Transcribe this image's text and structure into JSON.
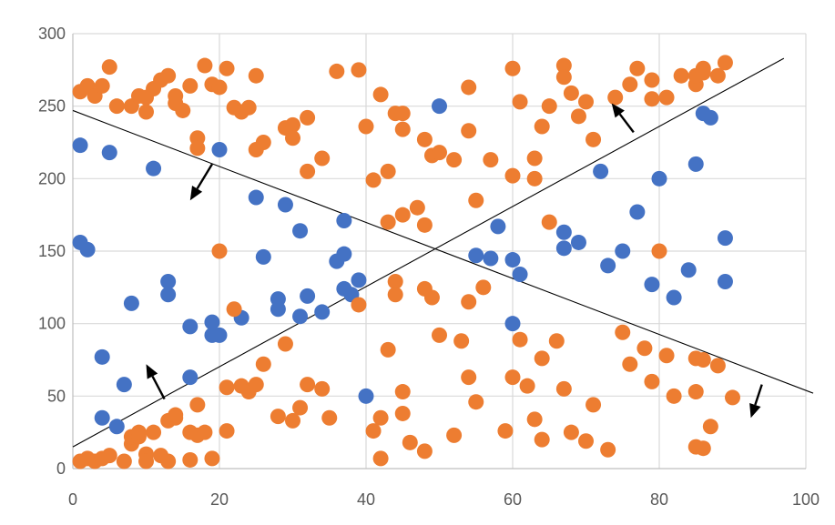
{
  "chart_data": {
    "type": "scatter",
    "title": "",
    "xlabel": "",
    "ylabel": "",
    "xlim": [
      0,
      100
    ],
    "ylim": [
      0,
      300
    ],
    "x_ticks": [
      0,
      20,
      40,
      60,
      80,
      100
    ],
    "y_ticks": [
      0,
      50,
      100,
      150,
      200,
      250,
      300
    ],
    "grid": true,
    "legend": "none",
    "series": [
      {
        "name": "blue",
        "color": "#4472c4",
        "points": [
          [
            1,
            223
          ],
          [
            5,
            218
          ],
          [
            1,
            156
          ],
          [
            2,
            151
          ],
          [
            11,
            207
          ],
          [
            20,
            220
          ],
          [
            4,
            77
          ],
          [
            8,
            114
          ],
          [
            13,
            129
          ],
          [
            13,
            120
          ],
          [
            16,
            98
          ],
          [
            19,
            101
          ],
          [
            19,
            92
          ],
          [
            20,
            92
          ],
          [
            4,
            35
          ],
          [
            6,
            29
          ],
          [
            7,
            58
          ],
          [
            16,
            63
          ],
          [
            23,
            104
          ],
          [
            25,
            187
          ],
          [
            26,
            146
          ],
          [
            28,
            117
          ],
          [
            28,
            110
          ],
          [
            29,
            182
          ],
          [
            31,
            164
          ],
          [
            31,
            105
          ],
          [
            32,
            119
          ],
          [
            34,
            108
          ],
          [
            36,
            143
          ],
          [
            37,
            171
          ],
          [
            37,
            148
          ],
          [
            37,
            124
          ],
          [
            38,
            120
          ],
          [
            39,
            130
          ],
          [
            40,
            50
          ],
          [
            50,
            250
          ],
          [
            55,
            147
          ],
          [
            57,
            145
          ],
          [
            58,
            167
          ],
          [
            60,
            144
          ],
          [
            60,
            100
          ],
          [
            61,
            134
          ],
          [
            67,
            163
          ],
          [
            67,
            152
          ],
          [
            69,
            156
          ],
          [
            72,
            205
          ],
          [
            73,
            140
          ],
          [
            75,
            150
          ],
          [
            77,
            177
          ],
          [
            79,
            127
          ],
          [
            80,
            200
          ],
          [
            82,
            118
          ],
          [
            84,
            137
          ],
          [
            85,
            210
          ],
          [
            86,
            245
          ],
          [
            87,
            242
          ],
          [
            89,
            159
          ],
          [
            89,
            129
          ]
        ]
      },
      {
        "name": "orange",
        "color": "#ed7d31",
        "points": [
          [
            1,
            260
          ],
          [
            2,
            264
          ],
          [
            3,
            257
          ],
          [
            4,
            264
          ],
          [
            5,
            277
          ],
          [
            6,
            250
          ],
          [
            8,
            250
          ],
          [
            9,
            257
          ],
          [
            10,
            246
          ],
          [
            10,
            256
          ],
          [
            11,
            262
          ],
          [
            12,
            268
          ],
          [
            13,
            271
          ],
          [
            14,
            257
          ],
          [
            14,
            252
          ],
          [
            15,
            247
          ],
          [
            16,
            264
          ],
          [
            17,
            228
          ],
          [
            17,
            221
          ],
          [
            18,
            278
          ],
          [
            19,
            265
          ],
          [
            20,
            263
          ],
          [
            21,
            276
          ],
          [
            22,
            249
          ],
          [
            23,
            246
          ],
          [
            24,
            249
          ],
          [
            25,
            271
          ],
          [
            25,
            220
          ],
          [
            26,
            225
          ],
          [
            29,
            235
          ],
          [
            30,
            237
          ],
          [
            30,
            228
          ],
          [
            32,
            242
          ],
          [
            32,
            205
          ],
          [
            34,
            214
          ],
          [
            36,
            274
          ],
          [
            39,
            275
          ],
          [
            40,
            236
          ],
          [
            41,
            199
          ],
          [
            42,
            258
          ],
          [
            43,
            205
          ],
          [
            44,
            245
          ],
          [
            45,
            245
          ],
          [
            45,
            234
          ],
          [
            43,
            170
          ],
          [
            45,
            175
          ],
          [
            47,
            180
          ],
          [
            48,
            168
          ],
          [
            48,
            227
          ],
          [
            49,
            216
          ],
          [
            50,
            218
          ],
          [
            52,
            213
          ],
          [
            54,
            263
          ],
          [
            54,
            233
          ],
          [
            55,
            185
          ],
          [
            57,
            213
          ],
          [
            60,
            276
          ],
          [
            60,
            202
          ],
          [
            61,
            253
          ],
          [
            63,
            200
          ],
          [
            63,
            214
          ],
          [
            64,
            236
          ],
          [
            65,
            250
          ],
          [
            65,
            170
          ],
          [
            67,
            278
          ],
          [
            67,
            270
          ],
          [
            68,
            259
          ],
          [
            69,
            243
          ],
          [
            70,
            253
          ],
          [
            71,
            227
          ],
          [
            74,
            256
          ],
          [
            76,
            265
          ],
          [
            77,
            276
          ],
          [
            79,
            255
          ],
          [
            79,
            268
          ],
          [
            81,
            256
          ],
          [
            83,
            271
          ],
          [
            85,
            265
          ],
          [
            85,
            271
          ],
          [
            86,
            273
          ],
          [
            86,
            276
          ],
          [
            88,
            271
          ],
          [
            89,
            280
          ],
          [
            20,
            150
          ],
          [
            80,
            150
          ],
          [
            22,
            110
          ],
          [
            39,
            113
          ],
          [
            44,
            129
          ],
          [
            44,
            120
          ],
          [
            48,
            124
          ],
          [
            49,
            118
          ],
          [
            54,
            115
          ],
          [
            56,
            125
          ],
          [
            1,
            5
          ],
          [
            2,
            7
          ],
          [
            3,
            5
          ],
          [
            4,
            7
          ],
          [
            5,
            9
          ],
          [
            7,
            5
          ],
          [
            8,
            17
          ],
          [
            8,
            22
          ],
          [
            9,
            22
          ],
          [
            9,
            25
          ],
          [
            10,
            10
          ],
          [
            10,
            5
          ],
          [
            11,
            25
          ],
          [
            12,
            9
          ],
          [
            13,
            5
          ],
          [
            13,
            33
          ],
          [
            14,
            35
          ],
          [
            14,
            37
          ],
          [
            16,
            25
          ],
          [
            16,
            6
          ],
          [
            17,
            44
          ],
          [
            17,
            23
          ],
          [
            18,
            25
          ],
          [
            19,
            7
          ],
          [
            21,
            56
          ],
          [
            21,
            26
          ],
          [
            23,
            57
          ],
          [
            24,
            53
          ],
          [
            25,
            58
          ],
          [
            26,
            72
          ],
          [
            28,
            36
          ],
          [
            29,
            86
          ],
          [
            30,
            33
          ],
          [
            31,
            42
          ],
          [
            32,
            58
          ],
          [
            34,
            55
          ],
          [
            35,
            35
          ],
          [
            41,
            26
          ],
          [
            42,
            35
          ],
          [
            42,
            7
          ],
          [
            43,
            82
          ],
          [
            45,
            53
          ],
          [
            45,
            38
          ],
          [
            46,
            18
          ],
          [
            48,
            12
          ],
          [
            50,
            92
          ],
          [
            52,
            23
          ],
          [
            53,
            88
          ],
          [
            54,
            63
          ],
          [
            55,
            46
          ],
          [
            59,
            26
          ],
          [
            60,
            63
          ],
          [
            61,
            89
          ],
          [
            62,
            57
          ],
          [
            63,
            34
          ],
          [
            64,
            20
          ],
          [
            64,
            76
          ],
          [
            66,
            88
          ],
          [
            67,
            55
          ],
          [
            68,
            25
          ],
          [
            70,
            19
          ],
          [
            71,
            44
          ],
          [
            73,
            13
          ],
          [
            75,
            94
          ],
          [
            76,
            72
          ],
          [
            78,
            83
          ],
          [
            79,
            60
          ],
          [
            81,
            78
          ],
          [
            82,
            50
          ],
          [
            85,
            53
          ],
          [
            85,
            15
          ],
          [
            86,
            14
          ],
          [
            85,
            76
          ],
          [
            86,
            75
          ],
          [
            87,
            29
          ],
          [
            88,
            71
          ],
          [
            90,
            49
          ]
        ]
      }
    ],
    "lines": [
      {
        "name": "descending-line",
        "from": [
          0,
          247
        ],
        "to": [
          101,
          52
        ]
      },
      {
        "name": "ascending-line",
        "from": [
          0,
          15
        ],
        "to": [
          97,
          283
        ]
      }
    ],
    "arrows": [
      {
        "name": "arrow-upper-left",
        "from": [
          19,
          210
        ],
        "to": [
          16,
          185
        ]
      },
      {
        "name": "arrow-lower-left",
        "from": [
          12.5,
          48
        ],
        "to": [
          10,
          72
        ]
      },
      {
        "name": "arrow-upper-right",
        "from": [
          76.5,
          232
        ],
        "to": [
          73.5,
          252
        ]
      },
      {
        "name": "arrow-lower-right",
        "from": [
          94,
          58
        ],
        "to": [
          92.5,
          35
        ]
      }
    ]
  }
}
